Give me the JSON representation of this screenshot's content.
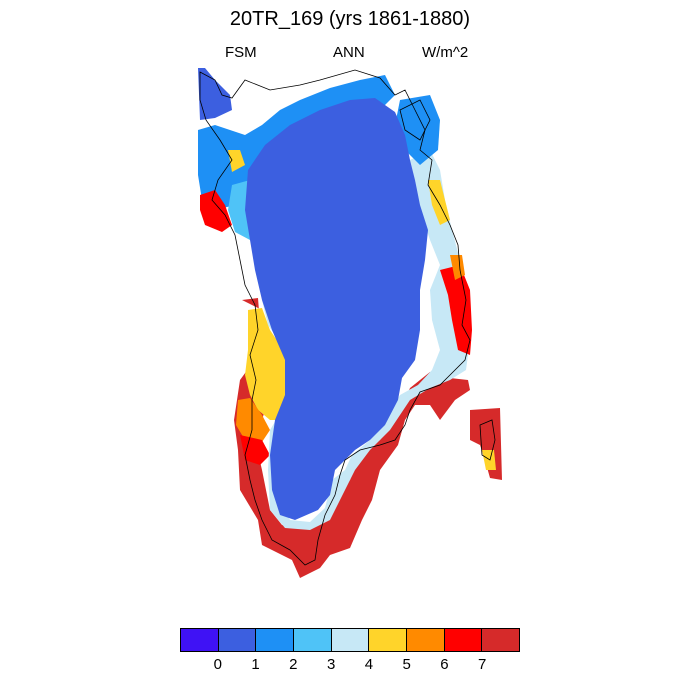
{
  "title": "20TR_169 (yrs 1861-1880)",
  "left_label": "FSM",
  "center_label": "ANN",
  "right_label": "W/m^2",
  "legend": {
    "colors": [
      "#3f12f5",
      "#3c5fe0",
      "#1e90f5",
      "#4fc3f7",
      "#c7e8f6",
      "#ffd42a",
      "#ff8a00",
      "#ff0000",
      "#d62a2a"
    ],
    "ticks": [
      "0",
      "1",
      "2",
      "3",
      "4",
      "5",
      "6",
      "7"
    ]
  }
}
